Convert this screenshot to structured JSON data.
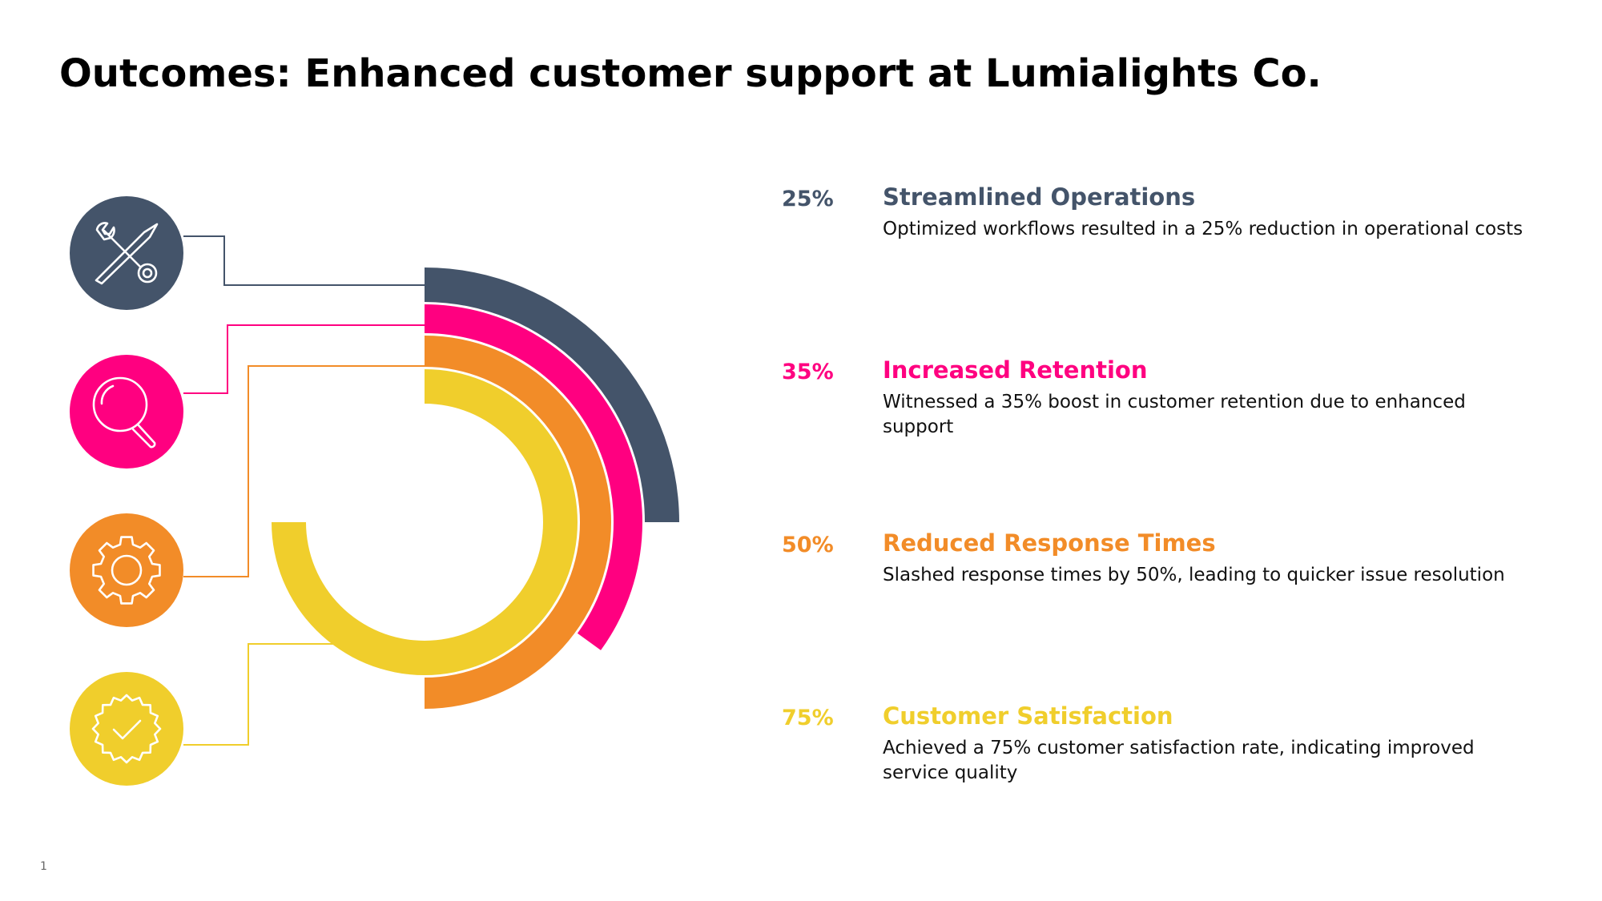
{
  "title": "Outcomes: Enhanced customer support at Lumialights Co.",
  "page_number": "1",
  "colors": {
    "slate": "#44546A",
    "pink": "#FF0080",
    "orange": "#F28C28",
    "yellow": "#F0CE2C"
  },
  "icons": [
    "tools-icon",
    "magnifier-icon",
    "gear-icon",
    "check-badge-icon"
  ],
  "chart_data": {
    "type": "radial-bar",
    "title": "Outcomes: Enhanced customer support at Lumialights Co.",
    "categories": [
      "Streamlined Operations",
      "Increased Retention",
      "Reduced Response Times",
      "Customer Satisfaction"
    ],
    "values": [
      25,
      35,
      50,
      75
    ],
    "unit": "%",
    "ylim": [
      0,
      100
    ],
    "series": [
      {
        "label": "25%",
        "name": "Streamlined Operations",
        "value": 25,
        "color": "#44546A",
        "description": "Optimized workflows resulted in a 25% reduction in operational costs"
      },
      {
        "label": "35%",
        "name": "Increased Retention",
        "value": 35,
        "color": "#FF0080",
        "description": "Witnessed a 35% boost in customer retention due to enhanced support"
      },
      {
        "label": "50%",
        "name": "Reduced Response Times",
        "value": 50,
        "color": "#F28C28",
        "description": "Slashed response times by 50%, leading to quicker issue resolution"
      },
      {
        "label": "75%",
        "name": "Customer Satisfaction",
        "value": 75,
        "color": "#F0CE2C",
        "description": "Achieved a 75% customer satisfaction rate, indicating improved service quality"
      }
    ]
  }
}
